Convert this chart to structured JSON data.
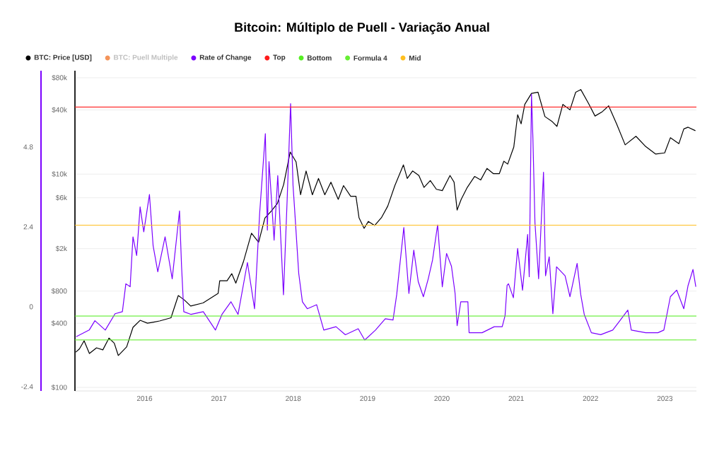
{
  "chart_data": {
    "type": "line",
    "title": "Bitcoin: Múltiplo de Puell - Variação Anual",
    "xlim": [
      "2015-01-24",
      "2023-06-05"
    ],
    "xticks": [
      "2016",
      "2017",
      "2018",
      "2019",
      "2020",
      "2021",
      "2022",
      "2023"
    ],
    "ylim": [
      92.7,
      93100
    ],
    "yticks": [
      {
        "value": 100,
        "label": "$100"
      },
      {
        "value": 400,
        "label": "$400"
      },
      {
        "value": 800,
        "label": "$800"
      },
      {
        "value": 2000,
        "label": "$2k"
      },
      {
        "value": 6000,
        "label": "$6k"
      },
      {
        "value": 10000,
        "label": "$10k"
      },
      {
        "value": 40000,
        "label": "$40k"
      },
      {
        "value": 80000,
        "label": "$80k"
      }
    ],
    "y2lim": [
      -2.53,
      7.09
    ],
    "y2ticks": [
      -2.4,
      0,
      2.4,
      4.8
    ],
    "log": "y",
    "grid": "y",
    "legend": "top",
    "marker": "none",
    "series": [
      {
        "name": "BTC: Price [USD]",
        "color": "#000000",
        "x": [
          "2015-01-28",
          "2015-02-15",
          "2015-03-10",
          "2015-04-05",
          "2015-05-10",
          "2015-06-10",
          "2015-07-10",
          "2015-08-05",
          "2015-08-25",
          "2015-10-05",
          "2015-11-05",
          "2015-12-10",
          "2016-01-15",
          "2016-02-15",
          "2016-03-15",
          "2016-05-10",
          "2016-06-15",
          "2016-07-15",
          "2016-08-15",
          "2016-10-15",
          "2016-12-28",
          "2017-01-05",
          "2017-02-10",
          "2017-03-05",
          "2017-03-25",
          "2017-05-01",
          "2017-06-10",
          "2017-07-15",
          "2017-08-15",
          "2017-09-15",
          "2017-10-15",
          "2017-11-15",
          "2017-12-17",
          "2018-01-15",
          "2018-02-06",
          "2018-03-05",
          "2018-04-05",
          "2018-05-05",
          "2018-06-05",
          "2018-07-05",
          "2018-08-10",
          "2018-09-05",
          "2018-10-10",
          "2018-11-05",
          "2018-11-20",
          "2018-12-15",
          "2019-01-05",
          "2019-02-05",
          "2019-03-10",
          "2019-04-10",
          "2019-05-15",
          "2019-06-26",
          "2019-07-15",
          "2019-08-10",
          "2019-09-10",
          "2019-10-05",
          "2019-11-05",
          "2019-12-05",
          "2020-01-03",
          "2020-02-10",
          "2020-03-01",
          "2020-03-16",
          "2020-04-05",
          "2020-05-05",
          "2020-06-10",
          "2020-07-10",
          "2020-08-10",
          "2020-09-10",
          "2020-10-10",
          "2020-11-01",
          "2020-11-20",
          "2020-12-20",
          "2021-01-08",
          "2021-01-25",
          "2021-02-12",
          "2021-03-17",
          "2021-04-18",
          "2021-05-22",
          "2021-06-27",
          "2021-07-20",
          "2021-08-18",
          "2021-09-22",
          "2021-10-20",
          "2021-11-14",
          "2021-12-22",
          "2022-01-23",
          "2022-02-28",
          "2022-03-31",
          "2022-05-09",
          "2022-06-20",
          "2022-08-12",
          "2022-09-29",
          "2022-11-17",
          "2022-12-31",
          "2023-01-28",
          "2023-03-11",
          "2023-04-04",
          "2023-04-25",
          "2023-05-31"
        ],
        "values": [
          214,
          230,
          274,
          208,
          235,
          225,
          290,
          260,
          199,
          240,
          366,
          426,
          400,
          410,
          420,
          450,
          727,
          660,
          580,
          620,
          760,
          1000,
          1000,
          1166,
          950,
          1500,
          2790,
          2300,
          3880,
          4500,
          5300,
          8000,
          16100,
          13000,
          6400,
          10700,
          6400,
          9100,
          6400,
          8400,
          5800,
          7800,
          6200,
          6200,
          3900,
          3100,
          3600,
          3300,
          3900,
          5000,
          7800,
          12200,
          9100,
          10700,
          9700,
          7500,
          8700,
          7200,
          7000,
          9700,
          8400,
          4600,
          5800,
          7500,
          9500,
          8800,
          11300,
          10100,
          10100,
          13200,
          12400,
          17900,
          36000,
          29600,
          45000,
          57000,
          58500,
          34600,
          31000,
          28000,
          45000,
          40000,
          58500,
          62000,
          46000,
          35000,
          38500,
          43600,
          29500,
          18800,
          22600,
          18100,
          15400,
          15800,
          21900,
          19300,
          26500,
          27500,
          25500
        ]
      },
      {
        "name": "BTC: Puell Multiple",
        "color": "#f4945a",
        "axis": "y2"
      },
      {
        "name": "Rate of Change",
        "color": "#7b00ff",
        "axis": "y2",
        "x": [
          "2015-01-30",
          "2015-04-04",
          "2015-05-02",
          "2015-06-22",
          "2015-08-09",
          "2015-09-14",
          "2015-10-01",
          "2015-10-22",
          "2015-11-05",
          "2015-11-23",
          "2015-12-10",
          "2015-12-28",
          "2016-01-25",
          "2016-02-12",
          "2016-03-06",
          "2016-04-11",
          "2016-05-16",
          "2016-06-21",
          "2016-07-01",
          "2016-07-12",
          "2016-08-17",
          "2016-10-16",
          "2016-12-15",
          "2017-01-16",
          "2017-03-01",
          "2017-04-05",
          "2017-05-21",
          "2017-06-25",
          "2017-07-20",
          "2017-08-17",
          "2017-08-27",
          "2017-09-04",
          "2017-09-29",
          "2017-10-17",
          "2017-11-14",
          "2017-12-02",
          "2017-12-19",
          "2017-12-31",
          "2018-01-07",
          "2018-01-28",
          "2018-02-15",
          "2018-03-11",
          "2018-04-26",
          "2018-05-31",
          "2018-07-30",
          "2018-09-14",
          "2018-11-16",
          "2018-12-18",
          "2019-02-09",
          "2019-03-29",
          "2019-05-06",
          "2019-05-24",
          "2019-06-28",
          "2019-07-23",
          "2019-08-16",
          "2019-09-07",
          "2019-10-02",
          "2019-10-26",
          "2019-11-16",
          "2019-12-11",
          "2020-01-03",
          "2020-01-24",
          "2020-02-17",
          "2020-03-06",
          "2020-03-16",
          "2020-04-03",
          "2020-05-08",
          "2020-05-14",
          "2020-07-17",
          "2020-09-15",
          "2020-10-24",
          "2020-11-07",
          "2020-11-17",
          "2020-11-24",
          "2020-12-18",
          "2021-01-08",
          "2021-02-01",
          "2021-02-26",
          "2021-03-06",
          "2021-03-17",
          "2021-03-24",
          "2021-04-03",
          "2021-04-21",
          "2021-05-15",
          "2021-05-25",
          "2021-06-12",
          "2021-06-30",
          "2021-07-18",
          "2021-08-29",
          "2021-09-22",
          "2021-10-27",
          "2021-11-14",
          "2021-12-01",
          "2022-01-05",
          "2022-02-20",
          "2022-04-20",
          "2022-05-25",
          "2022-07-03",
          "2022-07-20",
          "2022-09-29",
          "2022-11-28",
          "2022-12-27",
          "2023-01-28",
          "2023-02-28",
          "2023-04-04",
          "2023-04-25",
          "2023-05-19",
          "2023-06-02"
        ],
        "values": [
          -0.9,
          -0.7,
          -0.42,
          -0.7,
          -0.21,
          -0.15,
          0.69,
          0.6,
          2.1,
          1.54,
          3.0,
          2.25,
          3.37,
          1.83,
          1.05,
          2.1,
          0.84,
          2.88,
          1.22,
          -0.15,
          -0.23,
          -0.15,
          -0.7,
          -0.23,
          0.15,
          -0.23,
          1.33,
          -0.06,
          2.8,
          5.2,
          2.3,
          4.36,
          2.0,
          3.94,
          0.36,
          3.2,
          6.1,
          3.64,
          3.0,
          1.0,
          0.15,
          -0.06,
          0.06,
          -0.7,
          -0.6,
          -0.84,
          -0.66,
          -1.0,
          -0.7,
          -0.36,
          -0.4,
          0.36,
          2.38,
          0.4,
          1.7,
          0.75,
          0.3,
          0.84,
          1.4,
          2.46,
          0.6,
          1.6,
          1.22,
          0.4,
          -0.57,
          0.15,
          0.15,
          -0.78,
          -0.78,
          -0.6,
          -0.6,
          -0.27,
          0.64,
          0.69,
          0.27,
          1.75,
          0.5,
          2.17,
          0.9,
          6.38,
          5.05,
          2.53,
          0.84,
          4.04,
          0.93,
          1.5,
          -0.21,
          1.2,
          0.93,
          0.3,
          1.3,
          0.36,
          -0.23,
          -0.78,
          -0.84,
          -0.7,
          -0.42,
          -0.1,
          -0.7,
          -0.78,
          -0.78,
          -0.7,
          0.3,
          0.5,
          -0.06,
          0.64,
          1.12,
          0.6
        ]
      },
      {
        "name": "Top",
        "color": "#ff1a1a",
        "axis": "y2",
        "x": [
          "2015-01-24",
          "2023-06-05"
        ],
        "values": [
          6.0,
          6.0
        ]
      },
      {
        "name": "Bottom",
        "color": "#55ee22",
        "axis": "y2",
        "x": [
          "2015-01-24",
          "2023-06-05"
        ],
        "values": [
          -0.28,
          -0.28
        ]
      },
      {
        "name": "Formula 4",
        "color": "#66ee33",
        "axis": "y2",
        "x": [
          "2015-01-24",
          "2023-06-05"
        ],
        "values": [
          -1.0,
          -1.0
        ]
      },
      {
        "name": "Mid",
        "color": "#ffbf1f",
        "axis": "y2",
        "x": [
          "2015-01-24",
          "2023-06-05"
        ],
        "values": [
          2.45,
          2.45
        ]
      }
    ]
  }
}
